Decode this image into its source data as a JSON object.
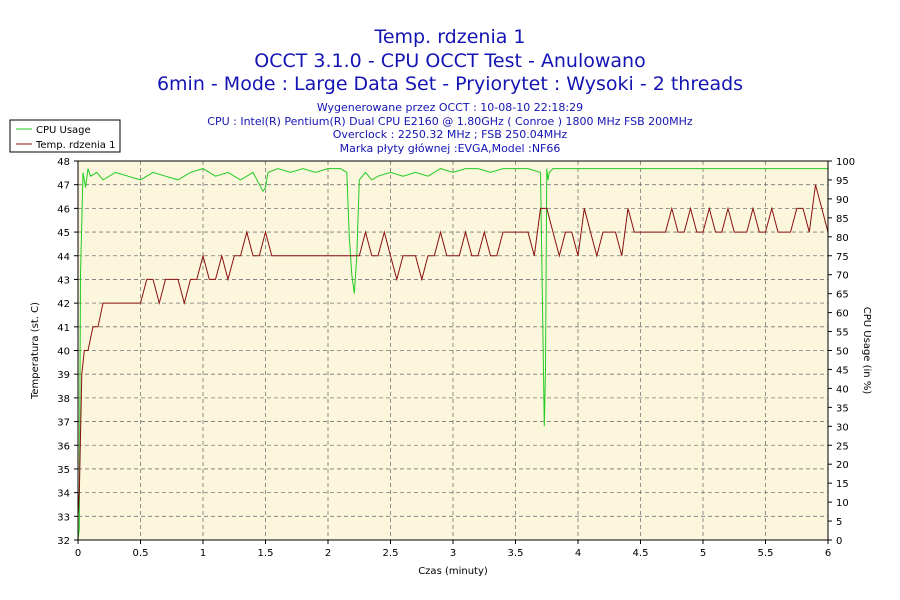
{
  "title_lines": [
    "Temp. rdzenia 1",
    "OCCT 3.1.0 - CPU OCCT Test - Anulowano",
    "6min - Mode : Large Data Set - Pryiorytet : Wysoki - 2 threads"
  ],
  "info_lines": [
    "Wygenerowane przez OCCT : 10-08-10 22:18:29",
    "CPU : Intel(R) Pentium(R) Dual CPU E2160 @ 1.80GHz ( Conroe ) 1800 MHz FSB 200MHz",
    "Overclock : 2250.32 MHz ; FSB 250.04MHz",
    "Marka płyty głównej :EVGA,Model :NF66"
  ],
  "colors": {
    "title": "#1414b4",
    "cpu_usage": "#22cc22",
    "temperature": "#8b1010",
    "plot_bg": "#fbf6dc",
    "grid": "#777777"
  },
  "chart_data": {
    "type": "line",
    "xlabel": "Czas (minuty)",
    "ylabel_left": "Temperatura (st. C)",
    "ylabel_right": "CPU Usage (in %)",
    "xlim": [
      0,
      6
    ],
    "ylim_left": [
      32,
      48
    ],
    "ylim_right": [
      0,
      100
    ],
    "x_ticks": [
      "0",
      "0.5",
      "1",
      "1.5",
      "2",
      "2.5",
      "3",
      "3.5",
      "4",
      "4.5",
      "5",
      "5.5",
      "6"
    ],
    "y_ticks_left": [
      "32",
      "33",
      "34",
      "35",
      "36",
      "37",
      "38",
      "39",
      "40",
      "41",
      "42",
      "43",
      "44",
      "45",
      "46",
      "47",
      "48"
    ],
    "y_ticks_right": [
      "0",
      "5",
      "10",
      "15",
      "20",
      "25",
      "30",
      "35",
      "40",
      "45",
      "50",
      "55",
      "60",
      "65",
      "70",
      "75",
      "80",
      "85",
      "90",
      "95",
      "100"
    ],
    "grid": true,
    "legend_position": "top-left",
    "series": [
      {
        "name": "CPU Usage",
        "axis": "right",
        "x": [
          0,
          0.01,
          0.02,
          0.04,
          0.06,
          0.08,
          0.1,
          0.15,
          0.2,
          0.3,
          0.4,
          0.5,
          0.6,
          0.7,
          0.8,
          0.9,
          1.0,
          1.1,
          1.2,
          1.3,
          1.4,
          1.48,
          1.5,
          1.52,
          1.6,
          1.7,
          1.8,
          1.9,
          2.0,
          2.1,
          2.15,
          2.17,
          2.19,
          2.21,
          2.23,
          2.25,
          2.3,
          2.35,
          2.4,
          2.5,
          2.6,
          2.7,
          2.8,
          2.9,
          3.0,
          3.1,
          3.2,
          3.3,
          3.4,
          3.5,
          3.6,
          3.7,
          3.73,
          3.74,
          3.75,
          3.76,
          3.77,
          3.8,
          3.9,
          4.0,
          4.1,
          4.2,
          4.3,
          4.4,
          4.5,
          4.6,
          4.7,
          4.8,
          4.9,
          5.0,
          5.1,
          5.2,
          5.3,
          5.4,
          5.5,
          5.6,
          5.7,
          5.8,
          5.9,
          6.0
        ],
        "values": [
          0,
          3,
          70,
          97,
          93,
          98,
          96,
          97,
          95,
          97,
          96,
          95,
          97,
          96,
          95,
          97,
          98,
          96,
          97,
          95,
          97,
          92,
          93,
          97,
          98,
          97,
          98,
          97,
          98,
          98,
          97,
          80,
          70,
          65,
          75,
          95,
          97,
          95,
          96,
          97,
          96,
          97,
          96,
          98,
          97,
          98,
          98,
          97,
          98,
          98,
          98,
          97,
          30,
          45,
          98,
          95,
          97,
          98,
          98,
          98,
          98,
          98,
          98,
          98,
          98,
          98,
          98,
          98,
          98,
          98,
          98,
          98,
          98,
          98,
          98,
          98,
          98,
          98,
          98,
          98
        ]
      },
      {
        "name": "Temp. rdzenia 1",
        "axis": "left",
        "x": [
          0,
          0.01,
          0.03,
          0.05,
          0.08,
          0.12,
          0.16,
          0.2,
          0.25,
          0.3,
          0.35,
          0.4,
          0.45,
          0.5,
          0.55,
          0.6,
          0.65,
          0.7,
          0.75,
          0.8,
          0.85,
          0.9,
          0.95,
          1.0,
          1.05,
          1.1,
          1.15,
          1.2,
          1.25,
          1.3,
          1.35,
          1.4,
          1.45,
          1.5,
          1.55,
          1.6,
          1.65,
          1.7,
          1.8,
          1.9,
          2.0,
          2.1,
          2.2,
          2.25,
          2.3,
          2.35,
          2.4,
          2.45,
          2.5,
          2.55,
          2.6,
          2.65,
          2.7,
          2.75,
          2.8,
          2.85,
          2.9,
          2.95,
          3.0,
          3.05,
          3.1,
          3.15,
          3.2,
          3.25,
          3.3,
          3.35,
          3.4,
          3.45,
          3.5,
          3.55,
          3.6,
          3.65,
          3.7,
          3.75,
          3.8,
          3.85,
          3.9,
          3.95,
          4.0,
          4.05,
          4.1,
          4.15,
          4.2,
          4.25,
          4.3,
          4.35,
          4.4,
          4.45,
          4.5,
          4.55,
          4.6,
          4.65,
          4.7,
          4.75,
          4.8,
          4.85,
          4.9,
          4.95,
          5.0,
          5.05,
          5.1,
          5.15,
          5.2,
          5.25,
          5.3,
          5.35,
          5.4,
          5.45,
          5.5,
          5.55,
          5.6,
          5.65,
          5.7,
          5.75,
          5.8,
          5.85,
          5.9,
          5.95,
          6.0
        ],
        "values": [
          33,
          34,
          39,
          40,
          40,
          41,
          41,
          42,
          42,
          42,
          42,
          42,
          42,
          42,
          43,
          43,
          42,
          43,
          43,
          43,
          42,
          43,
          43,
          44,
          43,
          43,
          44,
          43,
          44,
          44,
          45,
          44,
          44,
          45,
          44,
          44,
          44,
          44,
          44,
          44,
          44,
          44,
          44,
          44,
          45,
          44,
          44,
          45,
          44,
          43,
          44,
          44,
          44,
          43,
          44,
          44,
          45,
          44,
          44,
          44,
          45,
          44,
          44,
          45,
          44,
          44,
          45,
          45,
          45,
          45,
          45,
          44,
          46,
          46,
          45,
          44,
          45,
          45,
          44,
          46,
          45,
          44,
          45,
          45,
          45,
          44,
          46,
          45,
          45,
          45,
          45,
          45,
          45,
          46,
          45,
          45,
          46,
          45,
          45,
          46,
          45,
          45,
          46,
          45,
          45,
          45,
          46,
          45,
          45,
          46,
          45,
          45,
          45,
          46,
          46,
          45,
          47,
          46,
          45
        ]
      }
    ]
  }
}
